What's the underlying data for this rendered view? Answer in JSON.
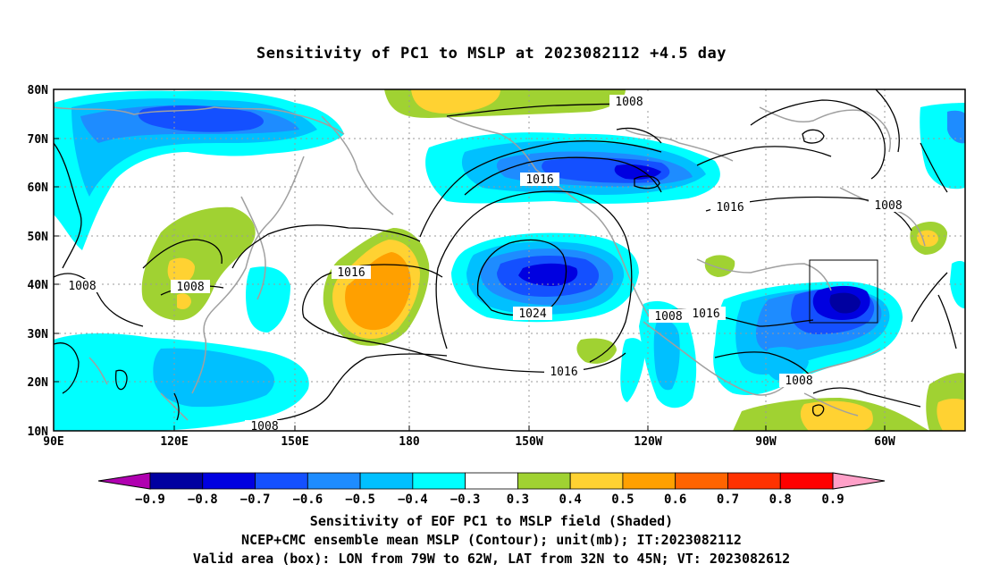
{
  "title": "Sensitivity of PC1 to MSLP at 2023082112 +4.5 day",
  "map": {
    "lon_labels": [
      "90E",
      "120E",
      "150E",
      "180",
      "150W",
      "120W",
      "90W",
      "60W"
    ],
    "lat_labels": [
      "80N",
      "70N",
      "60N",
      "50N",
      "40N",
      "30N",
      "20N",
      "10N"
    ],
    "contour_labels": [
      "1008",
      "1016",
      "1016",
      "1008",
      "1008",
      "1008",
      "1016",
      "1024",
      "1008",
      "1016",
      "1016",
      "1008",
      "1008"
    ],
    "valid_box": {
      "lon_from": "79W",
      "lon_to": "62W",
      "lat_from": "32N",
      "lat_to": "45N"
    }
  },
  "colorbar": {
    "labels": [
      "-0.9",
      "-0.8",
      "-0.7",
      "-0.6",
      "-0.5",
      "-0.4",
      "-0.3",
      "0.3",
      "0.4",
      "0.5",
      "0.6",
      "0.7",
      "0.8",
      "0.9"
    ],
    "colors": [
      "#b000b0",
      "#0000a0",
      "#0000e0",
      "#1450ff",
      "#1e8cff",
      "#00c0ff",
      "#00ffff",
      "#ffffff",
      "#a0d232",
      "#ffd232",
      "#ffa000",
      "#ff6400",
      "#ff3200",
      "#ff0000",
      "#ffa0c8"
    ]
  },
  "captions": [
    "Sensitivity of EOF PC1 to MSLP field (Shaded)",
    "NCEP+CMC ensemble mean MSLP (Contour); unit(mb); IT:2023082112",
    "Valid area (box): LON from 79W to 62W, LAT from 32N to 45N; VT: 2023082612"
  ]
}
